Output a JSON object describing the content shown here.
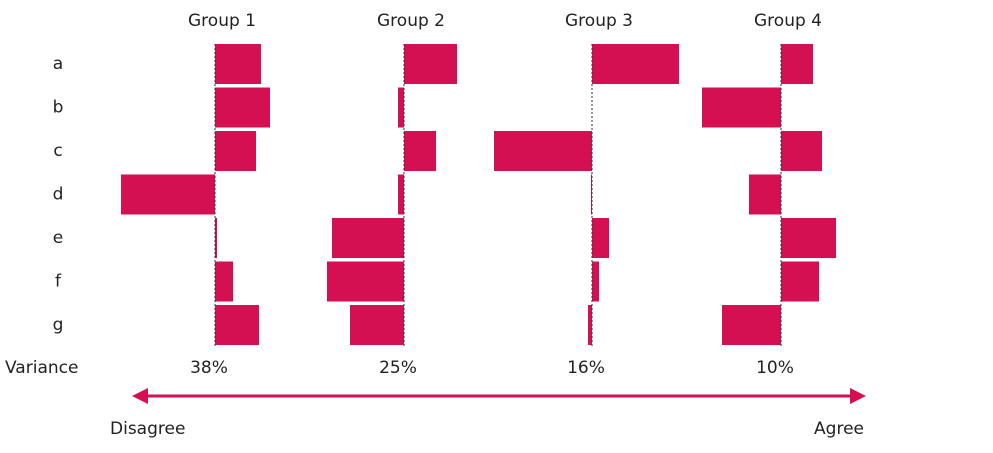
{
  "chart_data": {
    "type": "bar",
    "orientation": "horizontal",
    "color": "#d40f52",
    "categories": [
      "a",
      "b",
      "c",
      "d",
      "e",
      "f",
      "g"
    ],
    "series": [
      {
        "name": "Group 1",
        "values": [
          46,
          55,
          41,
          -94,
          2,
          18,
          44
        ]
      },
      {
        "name": "Group 2",
        "values": [
          53,
          -6,
          32,
          -6,
          -72,
          -77,
          -54
        ]
      },
      {
        "name": "Group 3",
        "values": [
          87,
          0,
          -98,
          -1,
          17,
          7,
          -4
        ]
      },
      {
        "name": "Group 4",
        "values": [
          32,
          -79,
          41,
          -32,
          55,
          38,
          -59
        ]
      }
    ],
    "variance": {
      "label": "Variance",
      "values": [
        38,
        25,
        16,
        10
      ],
      "value_labels": [
        "38%",
        "25%",
        "16%",
        "10%"
      ]
    },
    "annotations": {
      "left": "Disagree",
      "right": "Agree"
    }
  }
}
